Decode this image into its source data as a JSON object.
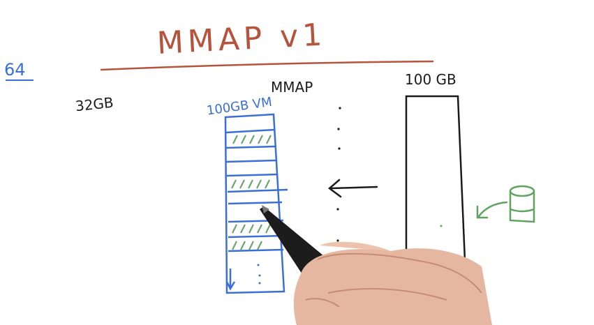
{
  "title": "MMAP v1",
  "labels": {
    "left_note": "64",
    "ram": "32GB",
    "vm": "100GB VM",
    "mmap": "MMAP",
    "disk": "100 GB"
  },
  "colors": {
    "title": "#b5533c",
    "blue": "#3a6fd6",
    "green": "#5fa35f",
    "black": "#1a1a1a"
  },
  "icons": [
    "database-icon",
    "arrow-left-icon",
    "pen-icon",
    "hand-icon"
  ]
}
